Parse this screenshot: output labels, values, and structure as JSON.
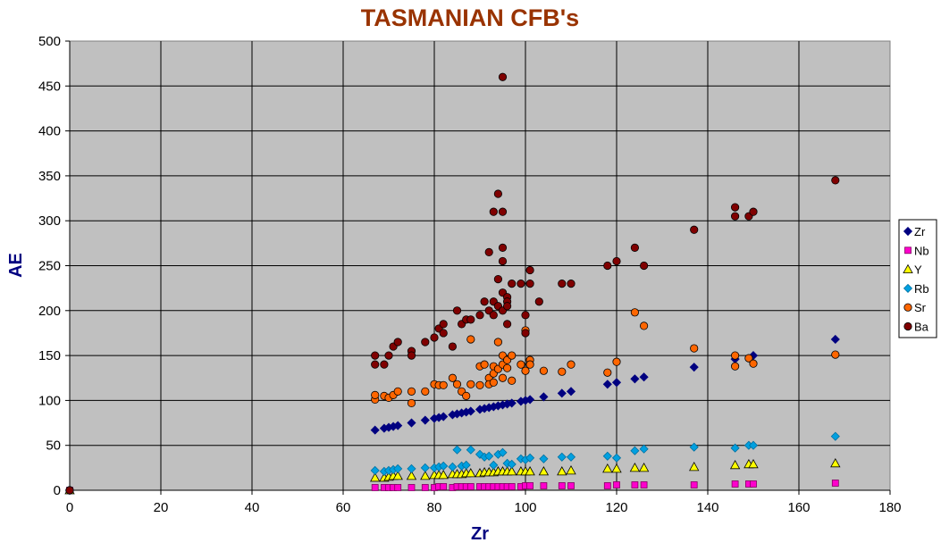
{
  "chart_data": {
    "type": "scatter",
    "title": "TASMANIAN CFB's",
    "xlabel": "Zr",
    "ylabel": "AE",
    "xlim": [
      0,
      180
    ],
    "ylim": [
      0,
      500
    ],
    "xticks": [
      0,
      20,
      40,
      60,
      80,
      100,
      120,
      140,
      160,
      180
    ],
    "yticks": [
      0,
      50,
      100,
      150,
      200,
      250,
      300,
      350,
      400,
      450,
      500
    ],
    "grid": true,
    "legend_position": "right",
    "plot_background": "#c0c0c0",
    "series": [
      {
        "name": "Zr",
        "marker": "diamond",
        "color": "#000080",
        "points": [
          [
            0,
            0
          ],
          [
            67,
            67
          ],
          [
            69,
            69
          ],
          [
            70,
            70
          ],
          [
            71,
            71
          ],
          [
            72,
            72
          ],
          [
            75,
            75
          ],
          [
            78,
            78
          ],
          [
            80,
            80
          ],
          [
            81,
            81
          ],
          [
            82,
            82
          ],
          [
            84,
            84
          ],
          [
            85,
            85
          ],
          [
            86,
            86
          ],
          [
            87,
            87
          ],
          [
            88,
            88
          ],
          [
            90,
            90
          ],
          [
            91,
            91
          ],
          [
            92,
            92
          ],
          [
            93,
            93
          ],
          [
            94,
            94
          ],
          [
            95,
            95
          ],
          [
            96,
            96
          ],
          [
            97,
            97
          ],
          [
            99,
            99
          ],
          [
            100,
            100
          ],
          [
            101,
            101
          ],
          [
            104,
            104
          ],
          [
            108,
            108
          ],
          [
            110,
            110
          ],
          [
            118,
            118
          ],
          [
            120,
            120
          ],
          [
            124,
            124
          ],
          [
            126,
            126
          ],
          [
            137,
            137
          ],
          [
            146,
            146
          ],
          [
            150,
            150
          ],
          [
            168,
            168
          ]
        ]
      },
      {
        "name": "Nb",
        "marker": "square",
        "color": "#ff00cc",
        "points": [
          [
            0,
            0
          ],
          [
            67,
            3
          ],
          [
            69,
            3
          ],
          [
            70,
            3
          ],
          [
            71,
            3
          ],
          [
            72,
            3
          ],
          [
            75,
            3
          ],
          [
            78,
            3
          ],
          [
            80,
            3
          ],
          [
            81,
            4
          ],
          [
            82,
            4
          ],
          [
            84,
            3
          ],
          [
            85,
            4
          ],
          [
            86,
            4
          ],
          [
            87,
            4
          ],
          [
            88,
            4
          ],
          [
            90,
            4
          ],
          [
            91,
            4
          ],
          [
            92,
            4
          ],
          [
            93,
            4
          ],
          [
            94,
            4
          ],
          [
            95,
            4
          ],
          [
            96,
            4
          ],
          [
            97,
            4
          ],
          [
            99,
            4
          ],
          [
            100,
            5
          ],
          [
            101,
            5
          ],
          [
            104,
            5
          ],
          [
            108,
            5
          ],
          [
            110,
            5
          ],
          [
            118,
            5
          ],
          [
            120,
            6
          ],
          [
            124,
            6
          ],
          [
            126,
            6
          ],
          [
            137,
            6
          ],
          [
            146,
            7
          ],
          [
            149,
            7
          ],
          [
            150,
            7
          ],
          [
            168,
            8
          ]
        ]
      },
      {
        "name": "Y",
        "marker": "triangle",
        "color": "#ffff00",
        "points": [
          [
            0,
            0
          ],
          [
            67,
            14
          ],
          [
            69,
            14
          ],
          [
            70,
            15
          ],
          [
            71,
            16
          ],
          [
            72,
            16
          ],
          [
            75,
            16
          ],
          [
            78,
            16
          ],
          [
            80,
            17
          ],
          [
            81,
            17
          ],
          [
            82,
            17
          ],
          [
            84,
            18
          ],
          [
            85,
            18
          ],
          [
            86,
            18
          ],
          [
            87,
            19
          ],
          [
            88,
            19
          ],
          [
            90,
            19
          ],
          [
            91,
            20
          ],
          [
            92,
            20
          ],
          [
            93,
            20
          ],
          [
            94,
            21
          ],
          [
            95,
            21
          ],
          [
            96,
            21
          ],
          [
            97,
            21
          ],
          [
            99,
            21
          ],
          [
            100,
            21
          ],
          [
            101,
            21
          ],
          [
            104,
            21
          ],
          [
            108,
            21
          ],
          [
            110,
            22
          ],
          [
            118,
            24
          ],
          [
            120,
            24
          ],
          [
            124,
            25
          ],
          [
            126,
            25
          ],
          [
            137,
            26
          ],
          [
            146,
            28
          ],
          [
            149,
            29
          ],
          [
            150,
            29
          ],
          [
            168,
            30
          ]
        ]
      },
      {
        "name": "Rb",
        "marker": "diamond",
        "color": "#00a0e0",
        "points": [
          [
            0,
            0
          ],
          [
            67,
            22
          ],
          [
            69,
            21
          ],
          [
            70,
            22
          ],
          [
            71,
            23
          ],
          [
            72,
            24
          ],
          [
            75,
            24
          ],
          [
            78,
            25
          ],
          [
            80,
            25
          ],
          [
            81,
            26
          ],
          [
            82,
            27
          ],
          [
            84,
            26
          ],
          [
            85,
            45
          ],
          [
            86,
            27
          ],
          [
            87,
            28
          ],
          [
            88,
            45
          ],
          [
            90,
            40
          ],
          [
            91,
            37
          ],
          [
            92,
            38
          ],
          [
            93,
            28
          ],
          [
            94,
            40
          ],
          [
            95,
            42
          ],
          [
            96,
            30
          ],
          [
            97,
            29
          ],
          [
            99,
            35
          ],
          [
            100,
            34
          ],
          [
            101,
            36
          ],
          [
            104,
            35
          ],
          [
            108,
            37
          ],
          [
            110,
            37
          ],
          [
            118,
            38
          ],
          [
            120,
            36
          ],
          [
            124,
            44
          ],
          [
            126,
            46
          ],
          [
            137,
            48
          ],
          [
            146,
            47
          ],
          [
            149,
            50
          ],
          [
            150,
            50
          ],
          [
            168,
            60
          ]
        ]
      },
      {
        "name": "Sr",
        "marker": "circle",
        "color": "#ff6600",
        "points": [
          [
            0,
            0
          ],
          [
            67,
            101
          ],
          [
            67,
            106
          ],
          [
            69,
            105
          ],
          [
            70,
            103
          ],
          [
            71,
            106
          ],
          [
            72,
            110
          ],
          [
            75,
            97
          ],
          [
            75,
            110
          ],
          [
            78,
            110
          ],
          [
            80,
            118
          ],
          [
            81,
            117
          ],
          [
            82,
            117
          ],
          [
            84,
            125
          ],
          [
            85,
            118
          ],
          [
            86,
            110
          ],
          [
            87,
            105
          ],
          [
            88,
            118
          ],
          [
            88,
            168
          ],
          [
            90,
            138
          ],
          [
            90,
            117
          ],
          [
            91,
            140
          ],
          [
            92,
            125
          ],
          [
            92,
            118
          ],
          [
            93,
            138
          ],
          [
            93,
            130
          ],
          [
            93,
            120
          ],
          [
            94,
            165
          ],
          [
            94,
            135
          ],
          [
            95,
            150
          ],
          [
            95,
            140
          ],
          [
            95,
            125
          ],
          [
            96,
            145
          ],
          [
            96,
            136
          ],
          [
            97,
            150
          ],
          [
            97,
            122
          ],
          [
            99,
            140
          ],
          [
            100,
            178
          ],
          [
            100,
            133
          ],
          [
            101,
            145
          ],
          [
            101,
            140
          ],
          [
            104,
            133
          ],
          [
            108,
            132
          ],
          [
            110,
            140
          ],
          [
            118,
            131
          ],
          [
            120,
            143
          ],
          [
            124,
            198
          ],
          [
            126,
            183
          ],
          [
            137,
            158
          ],
          [
            146,
            150
          ],
          [
            146,
            138
          ],
          [
            149,
            147
          ],
          [
            150,
            141
          ],
          [
            168,
            151
          ]
        ]
      },
      {
        "name": "Ba",
        "marker": "circle",
        "color": "#800000",
        "points": [
          [
            0,
            0
          ],
          [
            67,
            150
          ],
          [
            67,
            140
          ],
          [
            69,
            140
          ],
          [
            70,
            150
          ],
          [
            71,
            160
          ],
          [
            72,
            165
          ],
          [
            75,
            155
          ],
          [
            75,
            150
          ],
          [
            78,
            165
          ],
          [
            80,
            170
          ],
          [
            81,
            180
          ],
          [
            82,
            175
          ],
          [
            82,
            185
          ],
          [
            84,
            160
          ],
          [
            85,
            200
          ],
          [
            86,
            185
          ],
          [
            87,
            190
          ],
          [
            88,
            190
          ],
          [
            90,
            195
          ],
          [
            91,
            210
          ],
          [
            92,
            265
          ],
          [
            92,
            200
          ],
          [
            93,
            310
          ],
          [
            93,
            210
          ],
          [
            93,
            195
          ],
          [
            94,
            330
          ],
          [
            94,
            235
          ],
          [
            94,
            205
          ],
          [
            95,
            460
          ],
          [
            95,
            310
          ],
          [
            95,
            270
          ],
          [
            95,
            255
          ],
          [
            95,
            220
          ],
          [
            95,
            200
          ],
          [
            96,
            215
          ],
          [
            96,
            210
          ],
          [
            96,
            205
          ],
          [
            96,
            185
          ],
          [
            97,
            230
          ],
          [
            99,
            230
          ],
          [
            100,
            195
          ],
          [
            100,
            175
          ],
          [
            101,
            245
          ],
          [
            101,
            230
          ],
          [
            103,
            210
          ],
          [
            108,
            230
          ],
          [
            110,
            230
          ],
          [
            118,
            250
          ],
          [
            120,
            255
          ],
          [
            124,
            270
          ],
          [
            126,
            250
          ],
          [
            137,
            290
          ],
          [
            146,
            315
          ],
          [
            146,
            305
          ],
          [
            149,
            305
          ],
          [
            150,
            310
          ],
          [
            168,
            345
          ]
        ]
      }
    ]
  }
}
